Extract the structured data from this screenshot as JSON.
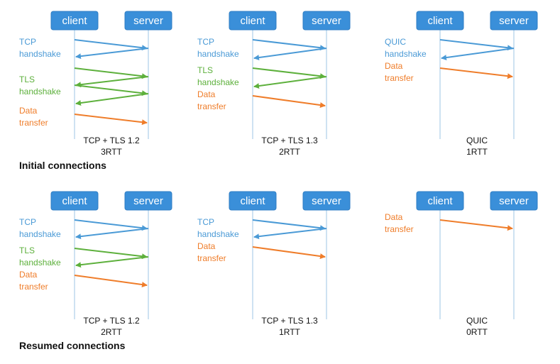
{
  "colors": {
    "tcp": "#4a9ad6",
    "tls": "#5db03c",
    "data": "#ef7d2a",
    "quic": "#4a9ad6",
    "box": "#3a8fd9"
  },
  "sections": [
    {
      "title": "Initial connections"
    },
    {
      "title": "Resumed connections"
    }
  ],
  "panels": [
    {
      "id": "p0",
      "client": "client",
      "server": "server",
      "caption": [
        "TCP + TLS 1.2",
        "3RTT"
      ],
      "stages": [
        {
          "kind": "tcp",
          "lines": [
            "TCP",
            "handshake"
          ]
        },
        {
          "kind": "tls",
          "lines": [
            "TLS",
            "handshake"
          ]
        },
        {
          "kind": "data",
          "lines": [
            "Data",
            "transfer"
          ]
        }
      ]
    },
    {
      "id": "p1",
      "client": "client",
      "server": "server",
      "caption": [
        "TCP + TLS 1.3",
        "2RTT"
      ],
      "stages": [
        {
          "kind": "tcp",
          "lines": [
            "TCP",
            "handshake"
          ]
        },
        {
          "kind": "tls",
          "lines": [
            "TLS",
            "handshake"
          ]
        },
        {
          "kind": "data",
          "lines": [
            "Data",
            "transfer"
          ]
        }
      ]
    },
    {
      "id": "p2",
      "client": "client",
      "server": "server",
      "caption": [
        "QUIC",
        "1RTT"
      ],
      "stages": [
        {
          "kind": "quic",
          "lines": [
            "QUIC",
            "handshake"
          ]
        },
        {
          "kind": "data",
          "lines": [
            "Data",
            "transfer"
          ]
        }
      ]
    },
    {
      "id": "p3",
      "client": "client",
      "server": "server",
      "caption": [
        "TCP + TLS 1.2",
        "2RTT"
      ],
      "stages": [
        {
          "kind": "tcp",
          "lines": [
            "TCP",
            "handshake"
          ]
        },
        {
          "kind": "tls",
          "lines": [
            "TLS",
            "handshake"
          ]
        },
        {
          "kind": "data",
          "lines": [
            "Data",
            "transfer"
          ]
        }
      ]
    },
    {
      "id": "p4",
      "client": "client",
      "server": "server",
      "caption": [
        "TCP + TLS 1.3",
        "1RTT"
      ],
      "stages": [
        {
          "kind": "tcp",
          "lines": [
            "TCP",
            "handshake"
          ]
        },
        {
          "kind": "data",
          "lines": [
            "Data",
            "transfer"
          ]
        }
      ]
    },
    {
      "id": "p5",
      "client": "client",
      "server": "server",
      "caption": [
        "QUIC",
        "0RTT"
      ],
      "stages": [
        {
          "kind": "data",
          "lines": [
            "Data",
            "transfer"
          ]
        }
      ]
    }
  ]
}
